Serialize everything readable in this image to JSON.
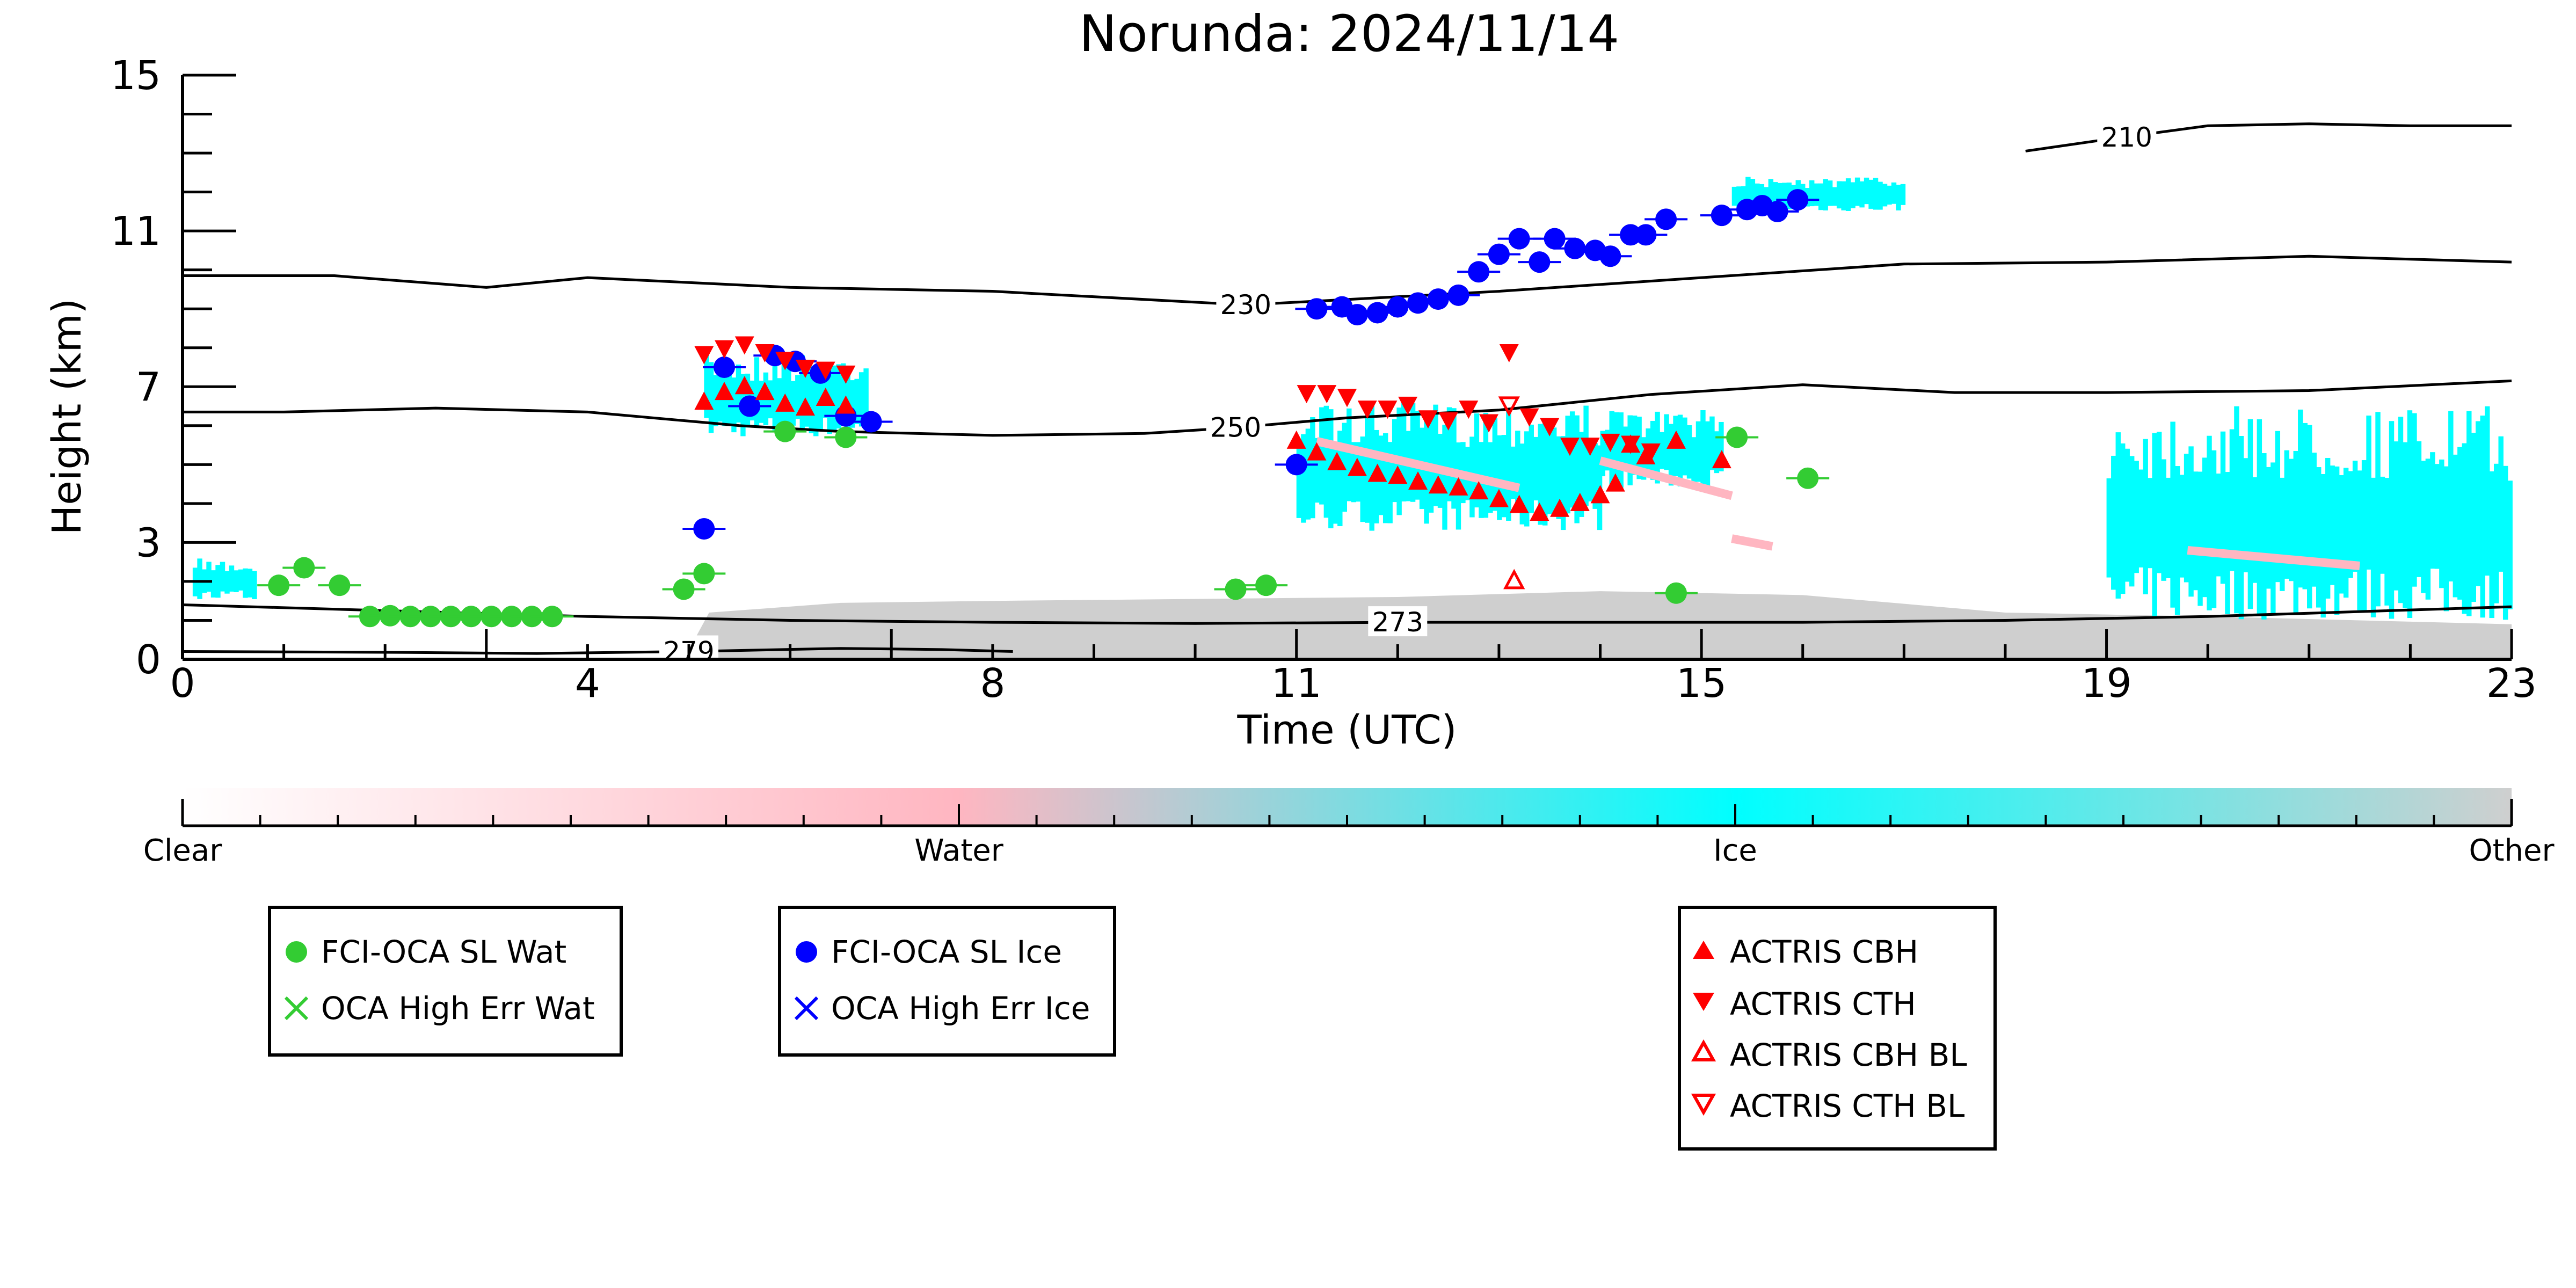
{
  "chart_data": {
    "type": "scatter",
    "title": "Norunda: 2024/11/14",
    "xlabel": "Time (UTC)",
    "ylabel": "Height (km)",
    "xlim": [
      0,
      23
    ],
    "ylim": [
      0,
      15
    ],
    "x_ticks": [
      "0",
      "4",
      "8",
      "11",
      "15",
      "19",
      "23"
    ],
    "y_ticks": [
      "0",
      "3",
      "7",
      "11",
      "15"
    ],
    "grid": false,
    "colorbar": {
      "labels": [
        "Clear",
        "Water",
        "Ice",
        "Other"
      ],
      "colors": {
        "clear": "#ffffff",
        "water": "#ffb6c1",
        "ice": "#00ffff",
        "other": "#cfcfcf"
      }
    },
    "contours": [
      {
        "label": "210",
        "points": [
          [
            18.2,
            13.05
          ],
          [
            19.0,
            13.35
          ],
          [
            20.0,
            13.7
          ],
          [
            21.0,
            13.75
          ],
          [
            22.0,
            13.7
          ],
          [
            23.0,
            13.7
          ]
        ]
      },
      {
        "label": "230",
        "points": [
          [
            0,
            9.85
          ],
          [
            1.5,
            9.85
          ],
          [
            3.0,
            9.55
          ],
          [
            4.0,
            9.8
          ],
          [
            6.0,
            9.55
          ],
          [
            8.0,
            9.45
          ],
          [
            10.5,
            9.1
          ],
          [
            13.0,
            9.45
          ],
          [
            15.0,
            9.8
          ],
          [
            17.0,
            10.15
          ],
          [
            19.0,
            10.2
          ],
          [
            21.0,
            10.35
          ],
          [
            23.0,
            10.2
          ]
        ]
      },
      {
        "label": "250",
        "points": [
          [
            0,
            6.35
          ],
          [
            1.0,
            6.35
          ],
          [
            2.5,
            6.45
          ],
          [
            4.0,
            6.35
          ],
          [
            5.5,
            6.0
          ],
          [
            6.5,
            5.85
          ],
          [
            8.0,
            5.75
          ],
          [
            9.5,
            5.8
          ],
          [
            10.4,
            5.95
          ],
          [
            11.5,
            6.2
          ],
          [
            13.0,
            6.4
          ],
          [
            14.5,
            6.8
          ],
          [
            16.0,
            7.05
          ],
          [
            17.5,
            6.85
          ],
          [
            19.0,
            6.85
          ],
          [
            21.0,
            6.9
          ],
          [
            23.0,
            7.15
          ]
        ]
      },
      {
        "label": "273",
        "points": [
          [
            0,
            1.4
          ],
          [
            2.0,
            1.25
          ],
          [
            4.0,
            1.1
          ],
          [
            6.0,
            1.0
          ],
          [
            8.0,
            0.95
          ],
          [
            10.0,
            0.92
          ],
          [
            12.0,
            0.95
          ],
          [
            14.0,
            0.95
          ],
          [
            16.0,
            0.95
          ],
          [
            18.0,
            1.0
          ],
          [
            20.0,
            1.1
          ],
          [
            23.0,
            1.35
          ]
        ]
      },
      {
        "label": "279",
        "points": [
          [
            0,
            0.2
          ],
          [
            2.0,
            0.18
          ],
          [
            3.5,
            0.15
          ],
          [
            5.0,
            0.2
          ],
          [
            6.5,
            0.28
          ],
          [
            7.5,
            0.25
          ],
          [
            8.2,
            0.2
          ]
        ]
      }
    ],
    "series": [
      {
        "name": "FCI-OCA SL Wat",
        "color": "#33cc33",
        "marker": "circle-filled",
        "x": [
          0.95,
          1.2,
          1.55,
          1.85,
          2.05,
          2.25,
          2.45,
          2.65,
          2.85,
          3.05,
          3.25,
          3.45,
          3.65,
          4.95,
          5.15,
          5.95,
          6.55,
          10.4,
          10.7,
          14.75,
          15.35,
          16.05
        ],
        "y": [
          1.9,
          2.35,
          1.9,
          1.1,
          1.12,
          1.1,
          1.1,
          1.1,
          1.1,
          1.1,
          1.1,
          1.1,
          1.1,
          1.8,
          2.2,
          5.85,
          5.7,
          1.8,
          1.9,
          1.7,
          5.7,
          4.65
        ]
      },
      {
        "name": "OCA High Err Wat",
        "color": "#33cc33",
        "marker": "x",
        "x": [],
        "y": []
      },
      {
        "name": "FCI-OCA SL Ice",
        "color": "#0000ff",
        "marker": "circle-filled",
        "x": [
          5.15,
          5.35,
          5.6,
          5.85,
          6.05,
          6.3,
          6.55,
          6.8,
          11.0,
          11.2,
          11.45,
          11.6,
          11.8,
          12.0,
          12.2,
          12.4,
          12.6,
          12.8,
          13.0,
          13.2,
          13.4,
          13.55,
          13.75,
          13.95,
          14.1,
          14.3,
          14.45,
          14.65,
          15.2,
          15.45,
          15.6,
          15.75,
          15.95
        ],
        "y": [
          3.35,
          7.5,
          6.5,
          7.8,
          7.65,
          7.35,
          6.25,
          6.1,
          5.0,
          9.0,
          9.05,
          8.85,
          8.9,
          9.05,
          9.15,
          9.25,
          9.35,
          9.95,
          10.4,
          10.8,
          10.2,
          10.8,
          10.55,
          10.5,
          10.35,
          10.9,
          10.9,
          11.3,
          11.4,
          11.55,
          11.65,
          11.5,
          11.8
        ]
      },
      {
        "name": "OCA High Err Ice",
        "color": "#0000ff",
        "marker": "x",
        "x": [],
        "y": []
      },
      {
        "name": "ACTRIS CBH",
        "color": "#ff0000",
        "marker": "triangle-up-filled",
        "x": [
          5.15,
          5.35,
          5.55,
          5.75,
          5.95,
          6.15,
          6.35,
          6.55,
          11.0,
          11.2,
          11.4,
          11.6,
          11.8,
          12.0,
          12.2,
          12.4,
          12.6,
          12.8,
          13.0,
          13.2,
          13.4,
          13.6,
          13.8,
          14.0,
          14.15,
          14.3,
          14.45,
          14.75,
          15.2
        ],
        "y": [
          6.6,
          6.85,
          7.0,
          6.85,
          6.55,
          6.45,
          6.7,
          6.5,
          5.6,
          5.3,
          5.05,
          4.9,
          4.75,
          4.7,
          4.55,
          4.45,
          4.4,
          4.3,
          4.1,
          3.95,
          3.75,
          3.85,
          4.0,
          4.2,
          4.5,
          5.5,
          5.2,
          5.6,
          5.1
        ]
      },
      {
        "name": "ACTRIS CTH",
        "color": "#ff0000",
        "marker": "triangle-down-filled",
        "x": [
          5.15,
          5.35,
          5.55,
          5.75,
          5.95,
          6.15,
          6.35,
          6.55,
          11.1,
          11.3,
          11.5,
          11.7,
          11.9,
          12.1,
          12.3,
          12.5,
          12.7,
          12.9,
          13.1,
          13.3,
          13.5,
          13.7,
          13.9,
          14.1,
          14.3,
          14.5
        ],
        "y": [
          7.85,
          8.0,
          8.1,
          7.9,
          7.7,
          7.5,
          7.45,
          7.35,
          6.85,
          6.85,
          6.75,
          6.45,
          6.45,
          6.55,
          6.2,
          6.15,
          6.45,
          6.1,
          7.9,
          6.25,
          6.0,
          5.5,
          5.5,
          5.6,
          5.55,
          5.35
        ]
      },
      {
        "name": "ACTRIS CBH BL",
        "color": "#ff0000",
        "marker": "triangle-up-open",
        "x": [
          13.15
        ],
        "y": [
          2.0
        ]
      },
      {
        "name": "ACTRIS CTH BL",
        "color": "#ff0000",
        "marker": "triangle-down-open",
        "x": [
          13.1
        ],
        "y": [
          6.55
        ]
      }
    ]
  },
  "legends": {
    "water": [
      "FCI-OCA SL Wat",
      "OCA High Err Wat"
    ],
    "ice": [
      "FCI-OCA SL Ice",
      "OCA High Err Ice"
    ],
    "actris": [
      "ACTRIS CBH",
      "ACTRIS CTH",
      "ACTRIS CBH BL",
      "ACTRIS CTH BL"
    ]
  }
}
